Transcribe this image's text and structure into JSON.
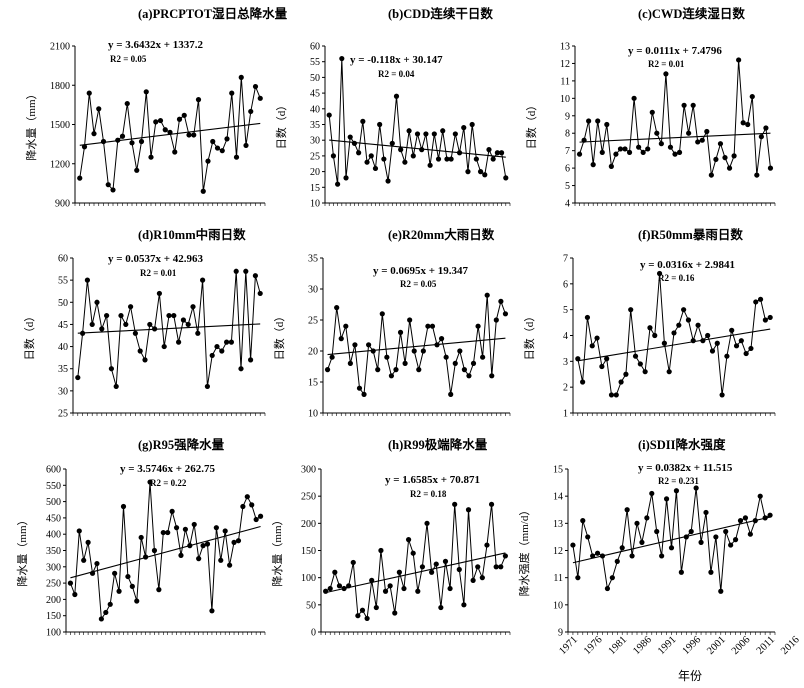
{
  "figure": {
    "shared_xlabel": "年份",
    "year_labels": [
      "1971",
      "1976",
      "1981",
      "1986",
      "1991",
      "1996",
      "2001",
      "2006",
      "2011",
      "2016"
    ]
  },
  "chart_data": [
    {
      "type": "line",
      "title": "(a)PRCPTOT湿日总降水量",
      "ylabel": "降水量（mm）",
      "equation": "y = 3.6432x + 1337.2",
      "r2": "R2 = 0.05",
      "ylim": [
        900,
        2100
      ],
      "yticks": [
        900,
        1200,
        1500,
        1800,
        2100
      ],
      "trend": [
        1340.8,
        1508.4
      ],
      "x_start": 1970,
      "values": [
        1090,
        1330,
        1740,
        1430,
        1620,
        1370,
        1040,
        1000,
        1380,
        1410,
        1660,
        1360,
        1150,
        1370,
        1750,
        1250,
        1520,
        1530,
        1460,
        1440,
        1290,
        1540,
        1570,
        1420,
        1420,
        1690,
        990,
        1220,
        1370,
        1320,
        1300,
        1390,
        1740,
        1250,
        1860,
        1340,
        1600,
        1790,
        1700
      ]
    },
    {
      "type": "line",
      "title": "(b)CDD连续干日数",
      "ylabel": "日数（d）",
      "equation": "y = -0.118x + 30.147",
      "r2": "R2 = 0.04",
      "ylim": [
        10,
        60
      ],
      "yticks": [
        10,
        15,
        20,
        25,
        30,
        35,
        40,
        45,
        50,
        55,
        60
      ],
      "trend": [
        30.03,
        24.6
      ],
      "x_start": 1970,
      "values": [
        38,
        25,
        16,
        56,
        18,
        31,
        29,
        26,
        36,
        23,
        25,
        21,
        35,
        24,
        17,
        29,
        44,
        27,
        23,
        33,
        25,
        32,
        27,
        32,
        22,
        32,
        24,
        33,
        24,
        24,
        32,
        26,
        34,
        20,
        35,
        24,
        20,
        19,
        27,
        24,
        26,
        26,
        18
      ]
    },
    {
      "type": "line",
      "title": "(c)CWD连续湿日数",
      "ylabel": "日数（d）",
      "equation": "y = 0.0111x + 7.4796",
      "r2": "R2 = 0.01",
      "ylim": [
        4,
        13
      ],
      "yticks": [
        4,
        5,
        6,
        7,
        8,
        9,
        10,
        11,
        12,
        13
      ],
      "trend": [
        7.49,
        8.0
      ],
      "x_start": 1970,
      "values": [
        6.8,
        7.6,
        8.7,
        6.2,
        8.7,
        6.9,
        8.5,
        6.1,
        6.8,
        7.1,
        7.1,
        6.9,
        10.0,
        7.2,
        6.9,
        7.1,
        9.2,
        8.0,
        7.4,
        11.4,
        7.2,
        6.8,
        6.9,
        9.6,
        8.0,
        9.6,
        7.5,
        7.6,
        8.1,
        5.6,
        6.5,
        7.4,
        6.6,
        6.0,
        6.7,
        12.2,
        8.6,
        8.5,
        10.1,
        5.6,
        7.8,
        8.3,
        6.0
      ]
    },
    {
      "type": "line",
      "title": "(d)R10mm中雨日数",
      "ylabel": "日数（d）",
      "equation": "y = 0.0537x + 42.963",
      "r2": "R2 = 0.01",
      "ylim": [
        25,
        60
      ],
      "yticks": [
        25,
        30,
        35,
        40,
        45,
        50,
        55,
        60
      ],
      "trend": [
        43.02,
        45.11
      ],
      "x_start": 1970,
      "values": [
        33,
        43,
        55,
        45,
        50,
        44,
        47,
        35,
        31,
        47,
        45,
        49,
        43,
        39,
        37,
        45,
        44,
        52,
        40,
        47,
        47,
        41,
        46,
        45,
        49,
        43,
        55,
        31,
        38,
        40,
        39,
        41,
        41,
        57,
        35,
        57,
        37,
        56,
        52
      ]
    },
    {
      "type": "line",
      "title": "(e)R20mm大雨日数",
      "ylabel": "日数（d）",
      "equation": "y = 0.0695x + 19.347",
      "r2": "R2 = 0.05",
      "ylim": [
        10,
        35
      ],
      "yticks": [
        10,
        15,
        20,
        25,
        30,
        35
      ],
      "trend": [
        19.42,
        22.06
      ],
      "x_start": 1970,
      "values": [
        17,
        19,
        27,
        22,
        24,
        18,
        21,
        14,
        13,
        21,
        20,
        17,
        26,
        19,
        16,
        17,
        23,
        18,
        25,
        20,
        17,
        20,
        24,
        24,
        21,
        22,
        19,
        13,
        18,
        20,
        17,
        16,
        18,
        24,
        19,
        29,
        16,
        25,
        28,
        26
      ]
    },
    {
      "type": "line",
      "title": "(f)R50mm暴雨日数",
      "ylabel": "日数（d）",
      "equation": "y = 0.0316x + 2.9841",
      "r2": "R2 = 0.16",
      "ylim": [
        1,
        7
      ],
      "yticks": [
        1,
        2,
        3,
        4,
        5,
        6,
        7
      ],
      "trend": [
        3.02,
        4.25
      ],
      "x_start": 1970,
      "values": [
        3.1,
        2.2,
        4.7,
        3.6,
        3.9,
        2.8,
        3.1,
        1.7,
        1.7,
        2.2,
        2.5,
        5.0,
        3.2,
        2.9,
        2.6,
        4.3,
        4.0,
        6.4,
        3.7,
        2.6,
        4.1,
        4.4,
        5.0,
        4.6,
        3.8,
        4.4,
        3.8,
        4.0,
        3.4,
        3.7,
        1.7,
        3.2,
        4.2,
        3.6,
        3.8,
        3.3,
        3.5,
        5.3,
        5.4,
        4.6,
        4.7
      ]
    },
    {
      "type": "line",
      "title": "(g)R95强降水量",
      "ylabel": "降水量（mm）",
      "equation": "y = 3.5746x + 262.75",
      "r2": "R2 = 0.22",
      "ylim": [
        100,
        600
      ],
      "yticks": [
        100,
        150,
        200,
        250,
        300,
        350,
        400,
        450,
        500,
        550,
        600
      ],
      "trend": [
        266.3,
        423.6
      ],
      "x_start": 1970,
      "values": [
        250,
        215,
        410,
        320,
        375,
        280,
        310,
        140,
        160,
        185,
        280,
        225,
        485,
        270,
        240,
        195,
        390,
        330,
        560,
        350,
        230,
        405,
        405,
        470,
        420,
        335,
        415,
        365,
        430,
        325,
        365,
        370,
        165,
        420,
        320,
        410,
        305,
        375,
        380,
        485,
        515,
        490,
        445,
        455
      ]
    },
    {
      "type": "line",
      "title": "(h)R99极端降水量",
      "ylabel": "降水量（mm）",
      "equation": "y = 1.6585x + 70.871",
      "r2": "R2 = 0.18",
      "ylim": [
        0,
        300
      ],
      "yticks": [
        0,
        50,
        100,
        150,
        200,
        250,
        300
      ],
      "trend": [
        72.5,
        145.5
      ],
      "x_start": 1970,
      "values": [
        75,
        80,
        110,
        85,
        80,
        85,
        128,
        30,
        40,
        25,
        95,
        45,
        150,
        75,
        85,
        35,
        110,
        80,
        170,
        145,
        75,
        120,
        200,
        110,
        125,
        45,
        130,
        80,
        235,
        115,
        50,
        225,
        95,
        120,
        100,
        160,
        235,
        120,
        120,
        140
      ]
    },
    {
      "type": "line",
      "title": "(i)SDII降水强度",
      "ylabel": "降水强度（mm/d）",
      "equation": "y = 0.0382x + 11.515",
      "r2": "R2 = 0.231",
      "ylim": [
        9,
        15
      ],
      "yticks": [
        9,
        10,
        11,
        12,
        13,
        14,
        15
      ],
      "trend": [
        11.55,
        13.23
      ],
      "x_start": 1970,
      "values": [
        12.2,
        11.0,
        13.1,
        12.5,
        11.8,
        11.9,
        11.8,
        10.6,
        11.0,
        11.6,
        12.1,
        13.5,
        11.8,
        13.0,
        12.3,
        13.2,
        14.1,
        12.7,
        11.8,
        13.9,
        12.1,
        14.2,
        11.2,
        12.5,
        12.7,
        14.3,
        12.3,
        13.4,
        11.2,
        12.5,
        10.5,
        12.7,
        12.2,
        12.4,
        13.1,
        13.2,
        12.6,
        13.1,
        14.0,
        13.2,
        13.3
      ]
    }
  ]
}
